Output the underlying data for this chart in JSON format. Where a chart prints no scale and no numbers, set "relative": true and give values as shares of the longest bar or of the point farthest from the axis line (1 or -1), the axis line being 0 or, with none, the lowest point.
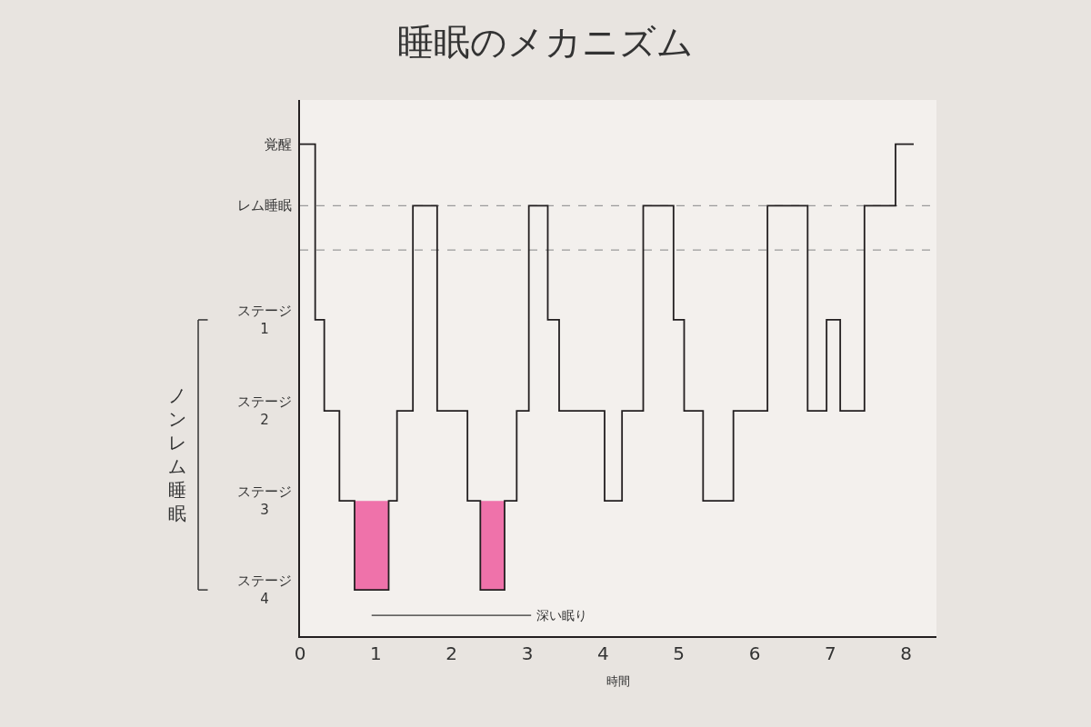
{
  "chart_data": {
    "type": "step",
    "title": "睡眠のメカニズム",
    "xlabel": "時間",
    "relative": true,
    "annotations": [
      "深い眠り",
      "ノンレム睡眠",
      "覚醒",
      "レム睡眠",
      "ステージ\n1",
      "ステージ\n2",
      "ステージ\n3",
      "ステージ\n4"
    ],
    "bands": [
      {
        "axis": "x",
        "from": 0.72,
        "to": 1.17,
        "color": "#ef72aa"
      },
      {
        "axis": "x",
        "from": 2.38,
        "to": 2.7,
        "color": "#ef72aa"
      }
    ],
    "series": [
      {
        "color": "#231f20",
        "x": [
          0,
          0.2,
          0.32,
          0.52,
          0.72,
          1.17,
          1.28,
          1.49,
          1.81,
          2.21,
          2.38,
          2.7,
          2.86,
          3.02,
          3.27,
          3.42,
          4.02,
          4.25,
          4.53,
          4.93,
          5.07,
          5.32,
          5.72,
          6.17,
          6.7,
          6.95,
          7.13,
          7.45,
          7.86,
          8.1
        ],
        "values": [
          1.0,
          0.643,
          0.458,
          0.275,
          0.094,
          0.275,
          0.458,
          0.875,
          0.458,
          0.275,
          0.094,
          0.275,
          0.458,
          0.875,
          0.643,
          0.458,
          0.275,
          0.458,
          0.875,
          0.643,
          0.458,
          0.275,
          0.458,
          0.875,
          0.458,
          0.643,
          0.458,
          0.875,
          1.0,
          1.0
        ]
      }
    ],
    "xlim": [
      0,
      8.4
    ],
    "xticks": [
      0,
      1,
      2,
      3,
      4,
      5,
      6,
      7,
      8
    ],
    "ref_lines": [
      {
        "axis": "y",
        "value": 0.875,
        "color": "#9a9a9a",
        "line_style": "dashed"
      },
      {
        "axis": "y",
        "value": 0.785,
        "color": "#9a9a9a",
        "line_style": "dashed"
      }
    ],
    "grid": false,
    "marker": "none"
  }
}
